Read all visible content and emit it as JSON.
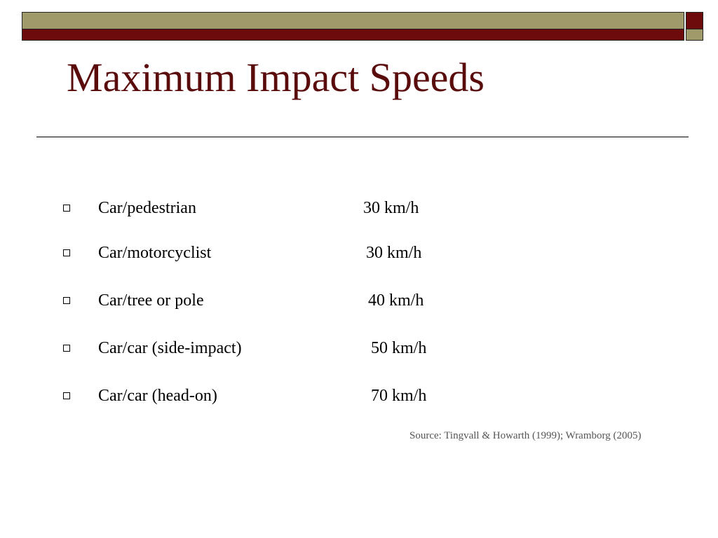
{
  "slide": {
    "title": "Maximum Impact Speeds",
    "colors": {
      "olive": "#a09a6a",
      "maroon": "#6d0a0c",
      "title": "#5a0c0c",
      "source": "#555555",
      "text": "#000000"
    },
    "items": [
      {
        "label": "Car/pedestrian",
        "value": "30 km/h"
      },
      {
        "label": "Car/motorcyclist",
        "value": "30 km/h"
      },
      {
        "label": "Car/tree or pole",
        "value": "40 km/h"
      },
      {
        "label": "Car/car (side-impact)",
        "value": "50 km/h"
      },
      {
        "label": "Car/car (head-on)",
        "value": "70 km/h"
      }
    ],
    "source": "Source: Tingvall & Howarth (1999); Wramborg (2005)"
  }
}
